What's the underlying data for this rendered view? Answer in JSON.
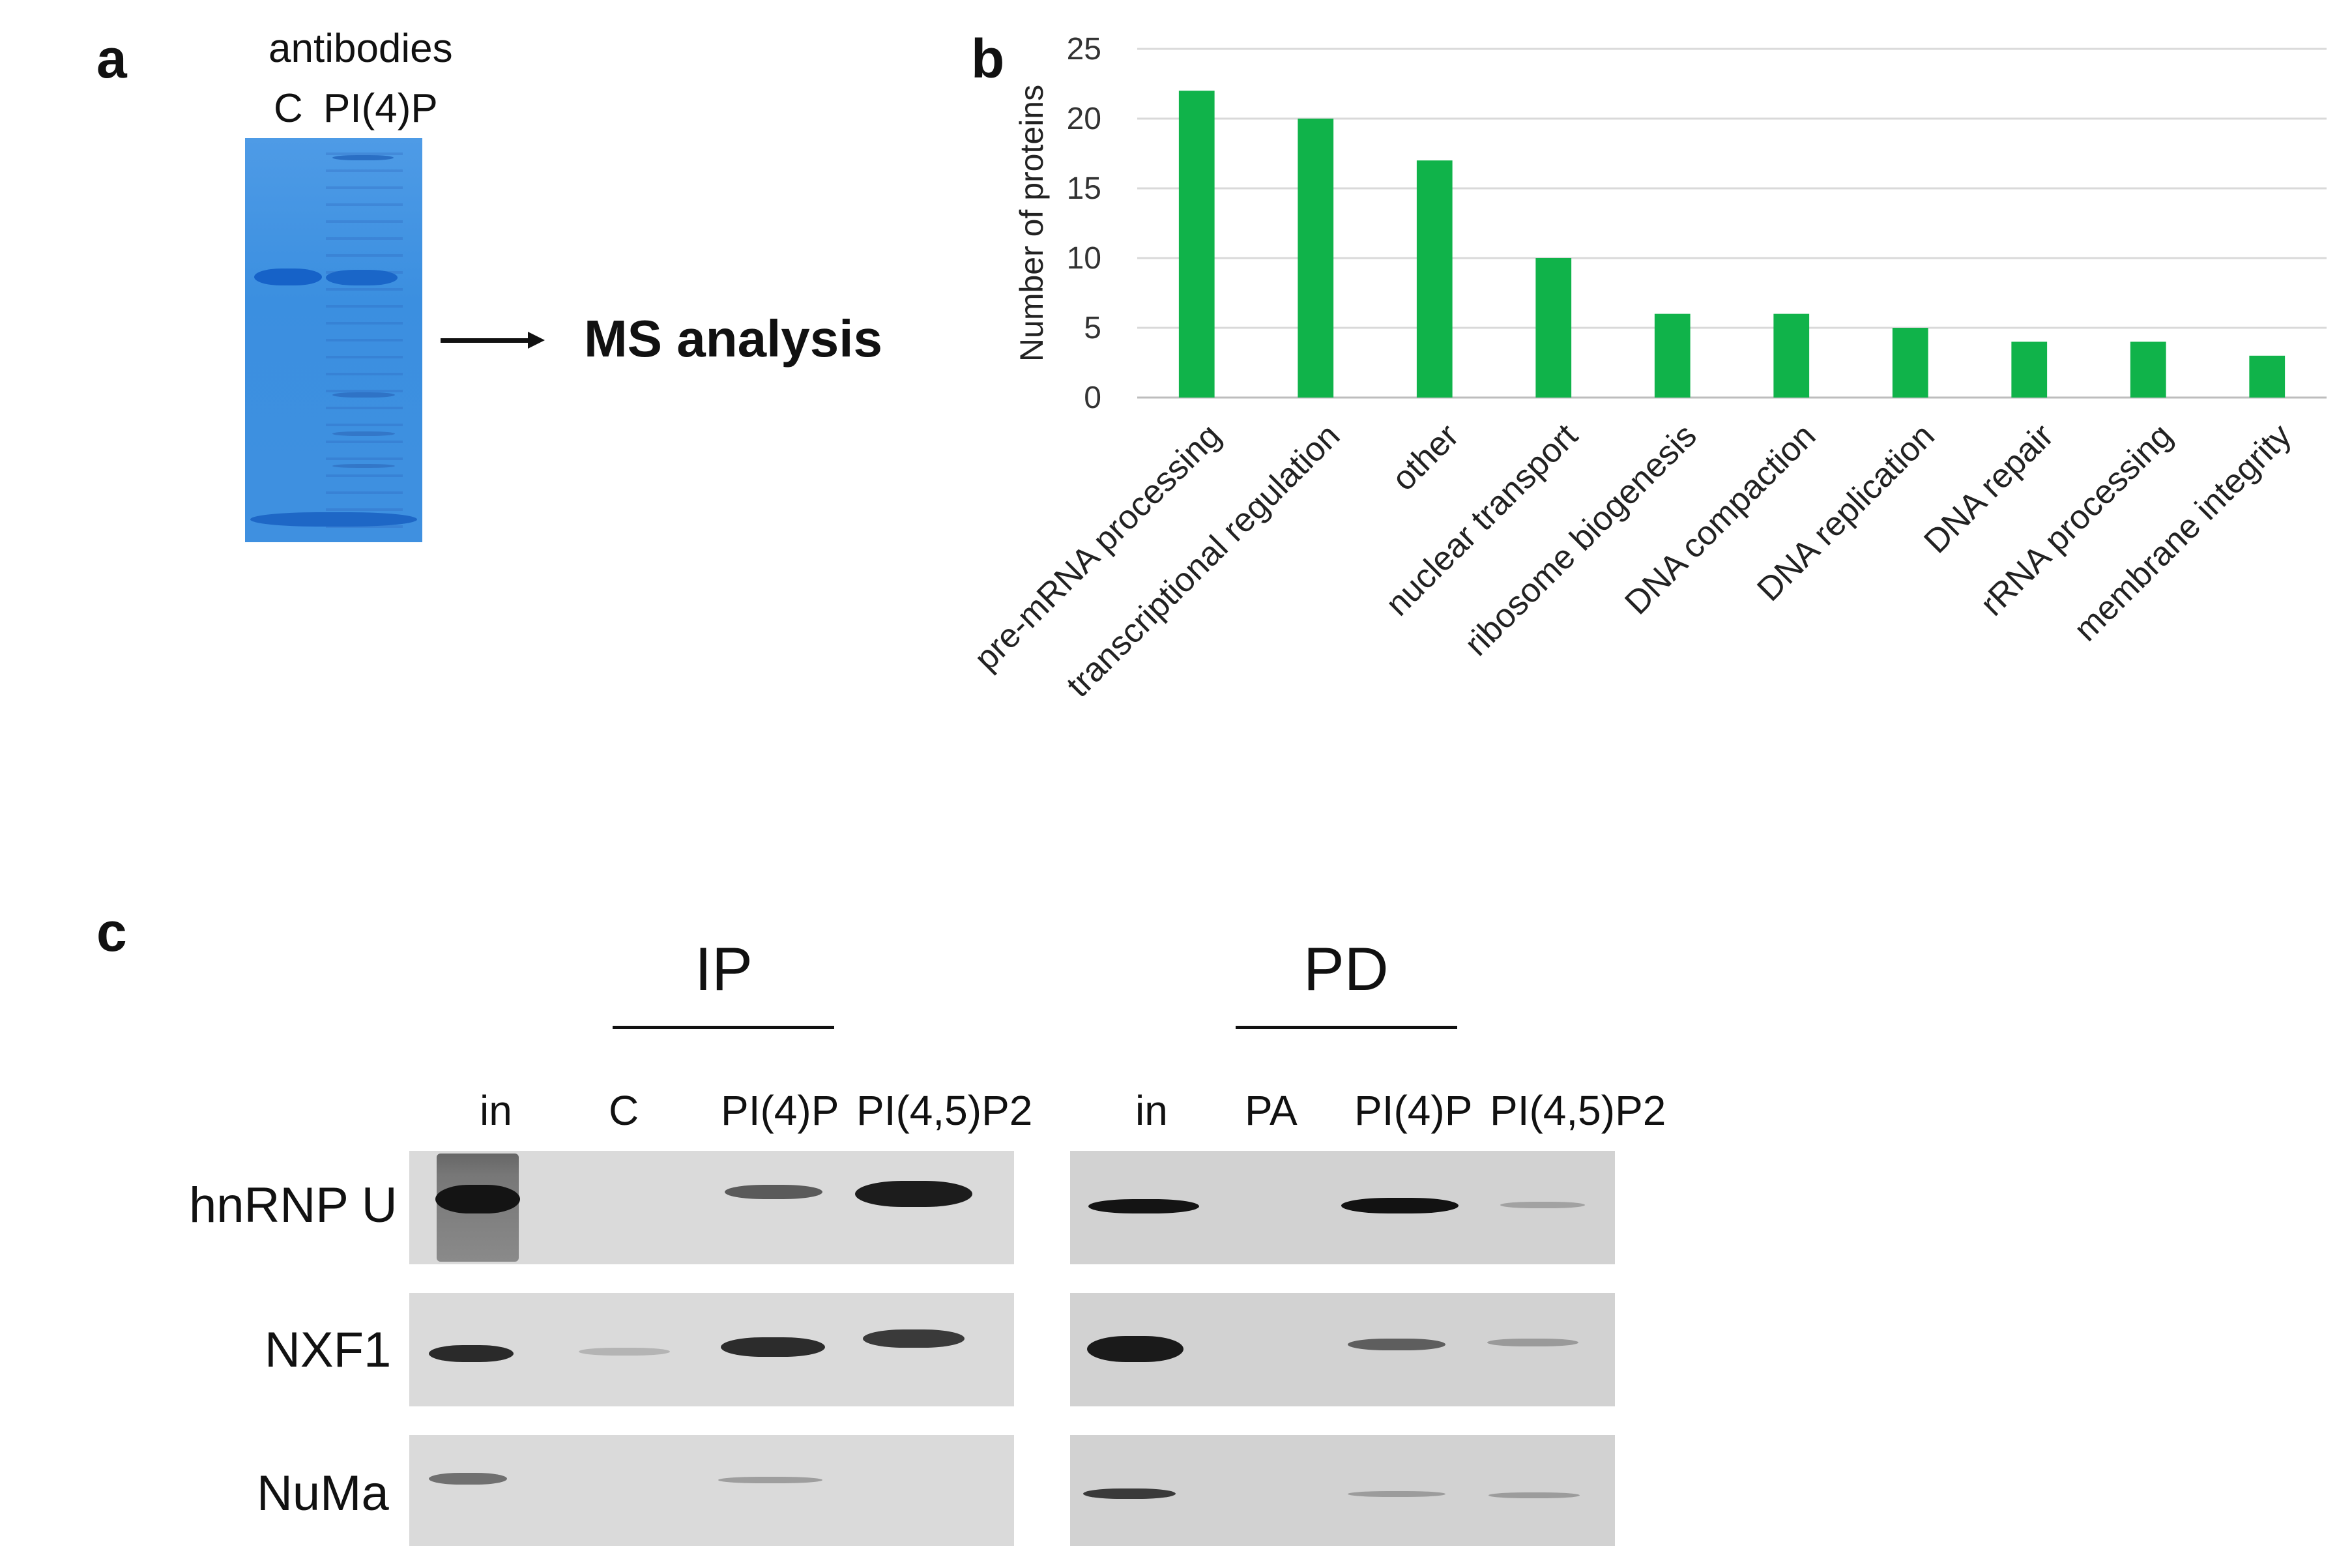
{
  "panels": {
    "a": {
      "letter": "a",
      "header": "antibodies",
      "lanes": [
        "C",
        "PI(4)P"
      ],
      "arrow_label": "MS analysis",
      "gel_color": "#3b8fe0"
    },
    "b": {
      "letter": "b"
    },
    "c": {
      "letter": "c",
      "groups": [
        {
          "title": "IP",
          "lanes": [
            "in",
            "C",
            "PI(4)P",
            "PI(4,5)P2"
          ]
        },
        {
          "title": "PD",
          "lanes": [
            "in",
            "PA",
            "PI(4)P",
            "PI(4,5)P2"
          ]
        }
      ],
      "rows": [
        "hnRNP U",
        "NXF1",
        "NuMa"
      ]
    }
  },
  "chart_data": {
    "type": "bar",
    "ylabel": "Number of proteins",
    "xlabel": "",
    "ylim": [
      0,
      25
    ],
    "yticks": [
      0,
      5,
      10,
      15,
      20,
      25
    ],
    "grid": true,
    "bar_color": "#10b34a",
    "categories": [
      "pre-mRNA processing",
      "transcriptional regulation",
      "other",
      "nuclear transport",
      "ribosome biogenesis",
      "DNA compaction",
      "DNA replication",
      "DNA repair",
      "rRNA processing",
      "membrane integrity"
    ],
    "values": [
      22,
      20,
      17,
      10,
      6,
      6,
      5,
      4,
      4,
      3
    ]
  }
}
